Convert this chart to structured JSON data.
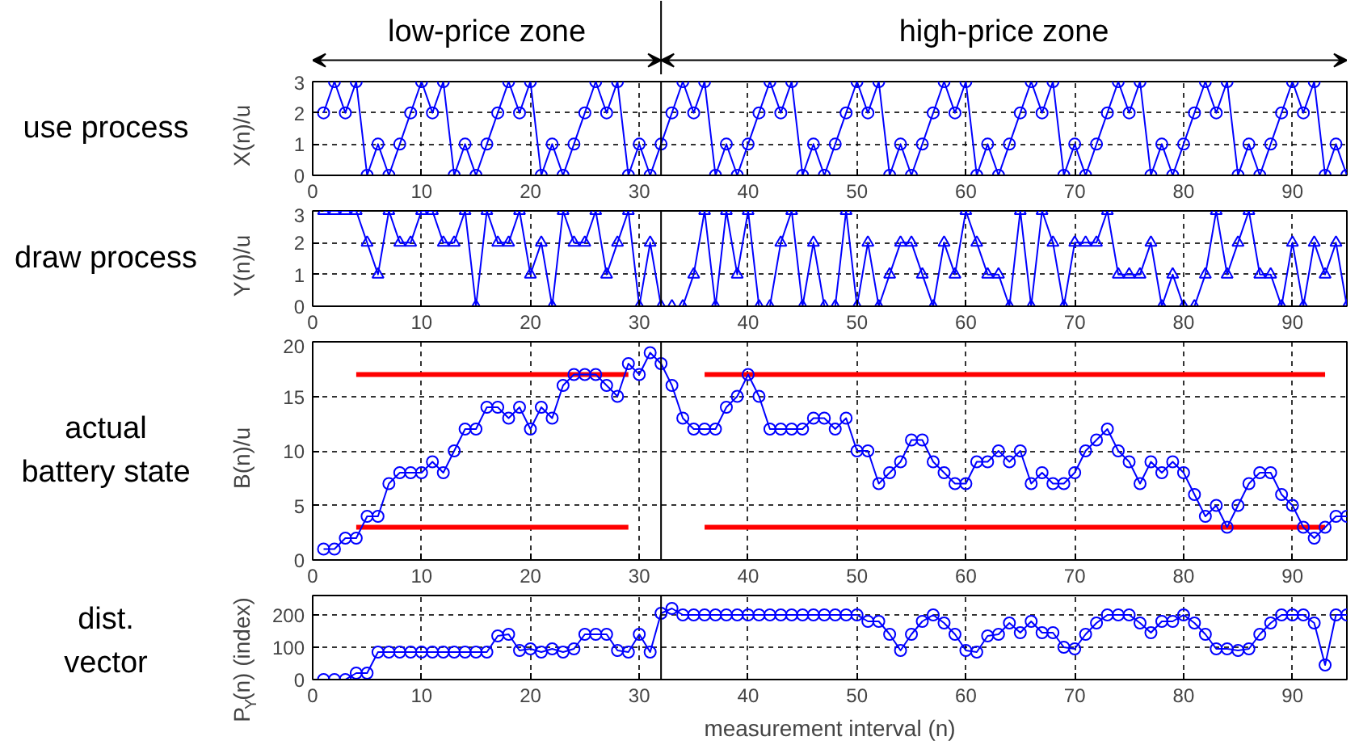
{
  "chart_data": [
    {
      "type": "line",
      "title": "use process",
      "ylabel": "X(n)/u",
      "marker": "circle",
      "grid": true,
      "xlim": [
        0,
        95
      ],
      "ylim": [
        0,
        3
      ],
      "xticks": [
        0,
        10,
        20,
        30,
        40,
        50,
        60,
        70,
        80,
        90
      ],
      "yticks": [
        0,
        1,
        2,
        3
      ],
      "annotations": [
        "low-price zone",
        "high-price zone"
      ],
      "ref_lines": [
        {
          "axis": "x",
          "value": 32,
          "color": "#000000"
        }
      ],
      "x": [
        1,
        2,
        3,
        4,
        5,
        6,
        7,
        8,
        9,
        10,
        11,
        12,
        13,
        14,
        15,
        16,
        17,
        18,
        19,
        20,
        21,
        22,
        23,
        24,
        25,
        26,
        27,
        28,
        29,
        30,
        31,
        32,
        33,
        34,
        35,
        36,
        37,
        38,
        39,
        40,
        41,
        42,
        43,
        44,
        45,
        46,
        47,
        48,
        49,
        50,
        51,
        52,
        53,
        54,
        55,
        56,
        57,
        58,
        59,
        60,
        61,
        62,
        63,
        64,
        65,
        66,
        67,
        68,
        69,
        70,
        71,
        72,
        73,
        74,
        75,
        76,
        77,
        78,
        79,
        80,
        81,
        82,
        83,
        84,
        85,
        86,
        87,
        88,
        89,
        90,
        91,
        92,
        93,
        94,
        95
      ],
      "series": [
        {
          "color": "#0000ff",
          "values": [
            2,
            3,
            2,
            3,
            0,
            1,
            0,
            1,
            2,
            3,
            2,
            3,
            0,
            1,
            0,
            1,
            2,
            3,
            2,
            3,
            0,
            1,
            0,
            1,
            2,
            3,
            2,
            3,
            0,
            1,
            0,
            1,
            2,
            3,
            2,
            3,
            0,
            1,
            0,
            1,
            2,
            3,
            2,
            3,
            0,
            1,
            0,
            1,
            2,
            3,
            2,
            3,
            0,
            1,
            0,
            1,
            2,
            3,
            2,
            3,
            0,
            1,
            0,
            1,
            2,
            3,
            2,
            3,
            0,
            1,
            0,
            1,
            2,
            3,
            2,
            3,
            0,
            1,
            0,
            1,
            2,
            3,
            2,
            3,
            0,
            1,
            0,
            1,
            2,
            3,
            2,
            3,
            0,
            1,
            0
          ]
        }
      ]
    },
    {
      "type": "line",
      "title": "draw process",
      "ylabel": "Y(n)/u",
      "marker": "triangle",
      "grid": true,
      "xlim": [
        0,
        95
      ],
      "ylim": [
        0,
        3
      ],
      "xticks": [
        0,
        10,
        20,
        30,
        40,
        50,
        60,
        70,
        80,
        90
      ],
      "yticks": [
        0,
        1,
        2,
        3
      ],
      "ref_lines": [
        {
          "axis": "x",
          "value": 32,
          "color": "#000000"
        }
      ],
      "x": [
        1,
        2,
        3,
        4,
        5,
        6,
        7,
        8,
        9,
        10,
        11,
        12,
        13,
        14,
        15,
        16,
        17,
        18,
        19,
        20,
        21,
        22,
        23,
        24,
        25,
        26,
        27,
        28,
        29,
        30,
        31,
        32,
        33,
        34,
        35,
        36,
        37,
        38,
        39,
        40,
        41,
        42,
        43,
        44,
        45,
        46,
        47,
        48,
        49,
        50,
        51,
        52,
        53,
        54,
        55,
        56,
        57,
        58,
        59,
        60,
        61,
        62,
        63,
        64,
        65,
        66,
        67,
        68,
        69,
        70,
        71,
        72,
        73,
        74,
        75,
        76,
        77,
        78,
        79,
        80,
        81,
        82,
        83,
        84,
        85,
        86,
        87,
        88,
        89,
        90,
        91,
        92,
        93,
        94,
        95
      ],
      "series": [
        {
          "color": "#0000ff",
          "values": [
            3,
            3,
            3,
            3,
            2,
            1,
            3,
            2,
            2,
            3,
            3,
            2,
            2,
            3,
            0,
            3,
            2,
            2,
            3,
            1,
            2,
            0,
            3,
            2,
            2,
            3,
            1,
            2,
            3,
            0,
            2,
            0,
            0,
            0,
            1,
            3,
            0,
            3,
            1,
            3,
            0,
            0,
            2,
            3,
            0,
            2,
            0,
            0,
            3,
            0,
            2,
            0,
            1,
            2,
            2,
            1,
            0,
            2,
            1,
            3,
            2,
            1,
            1,
            0,
            3,
            0,
            3,
            2,
            0,
            2,
            2,
            2,
            3,
            1,
            1,
            1,
            2,
            0,
            1,
            0,
            0,
            1,
            3,
            1,
            2,
            3,
            1,
            1,
            0,
            2,
            0,
            2,
            1,
            2,
            0
          ]
        }
      ]
    },
    {
      "type": "line",
      "title": "actual\nbattery state",
      "ylabel": "B(n)/u",
      "marker": "circle",
      "grid": true,
      "xlim": [
        0,
        95
      ],
      "ylim": [
        0,
        20
      ],
      "xticks": [
        0,
        10,
        20,
        30,
        40,
        50,
        60,
        70,
        80,
        90
      ],
      "yticks": [
        0,
        5,
        10,
        15,
        20
      ],
      "ref_lines": [
        {
          "axis": "x",
          "value": 32,
          "color": "#000000"
        }
      ],
      "x": [
        1,
        2,
        3,
        4,
        5,
        6,
        7,
        8,
        9,
        10,
        11,
        12,
        13,
        14,
        15,
        16,
        17,
        18,
        19,
        20,
        21,
        22,
        23,
        24,
        25,
        26,
        27,
        28,
        29,
        30,
        31,
        32,
        33,
        34,
        35,
        36,
        37,
        38,
        39,
        40,
        41,
        42,
        43,
        44,
        45,
        46,
        47,
        48,
        49,
        50,
        51,
        52,
        53,
        54,
        55,
        56,
        57,
        58,
        59,
        60,
        61,
        62,
        63,
        64,
        65,
        66,
        67,
        68,
        69,
        70,
        71,
        72,
        73,
        74,
        75,
        76,
        77,
        78,
        79,
        80,
        81,
        82,
        83,
        84,
        85,
        86,
        87,
        88,
        89,
        90,
        91,
        92,
        93,
        94,
        95
      ],
      "series": [
        {
          "color": "#ff0000",
          "marker": "none",
          "x": [
            4,
            29,
            32,
            36,
            93
          ],
          "values": [
            17,
            17,
            null,
            17,
            17
          ]
        },
        {
          "color": "#ff0000",
          "marker": "none",
          "x": [
            4,
            29,
            32,
            36,
            93
          ],
          "values": [
            3,
            3,
            null,
            3,
            3
          ]
        },
        {
          "color": "#0000ff",
          "values": [
            1,
            1,
            2,
            2,
            4,
            4,
            7,
            8,
            8,
            8,
            9,
            8,
            10,
            12,
            12,
            14,
            14,
            13,
            14,
            12,
            14,
            13,
            16,
            17,
            17,
            17,
            16,
            15,
            18,
            17,
            19,
            18,
            16,
            13,
            12,
            12,
            12,
            14,
            15,
            17,
            15,
            12,
            12,
            12,
            12,
            13,
            13,
            12,
            13,
            10,
            10,
            7,
            8,
            9,
            11,
            11,
            9,
            8,
            7,
            7,
            9,
            9,
            10,
            9,
            10,
            7,
            8,
            7,
            7,
            8,
            10,
            11,
            12,
            10,
            9,
            7,
            9,
            8,
            9,
            8,
            6,
            4,
            5,
            3,
            5,
            7,
            8,
            8,
            6,
            5,
            3,
            2,
            3,
            4,
            4
          ]
        }
      ]
    },
    {
      "type": "line",
      "title": "dist.\nvector",
      "ylabel": "P$_{Y}$(n) (index)",
      "xlabel": "measurement interval (n)",
      "marker": "circle",
      "grid": true,
      "xlim": [
        0,
        95
      ],
      "ylim": [
        0,
        260
      ],
      "xticks": [
        0,
        10,
        20,
        30,
        40,
        50,
        60,
        70,
        80,
        90
      ],
      "yticks": [
        0,
        100,
        200
      ],
      "ref_lines": [
        {
          "axis": "x",
          "value": 32,
          "color": "#000000"
        }
      ],
      "x": [
        1,
        2,
        3,
        4,
        5,
        6,
        7,
        8,
        9,
        10,
        11,
        12,
        13,
        14,
        15,
        16,
        17,
        18,
        19,
        20,
        21,
        22,
        23,
        24,
        25,
        26,
        27,
        28,
        29,
        30,
        31,
        32,
        33,
        34,
        35,
        36,
        37,
        38,
        39,
        40,
        41,
        42,
        43,
        44,
        45,
        46,
        47,
        48,
        49,
        50,
        51,
        52,
        53,
        54,
        55,
        56,
        57,
        58,
        59,
        60,
        61,
        62,
        63,
        64,
        65,
        66,
        67,
        68,
        69,
        70,
        71,
        72,
        73,
        74,
        75,
        76,
        77,
        78,
        79,
        80,
        81,
        82,
        83,
        84,
        85,
        86,
        87,
        88,
        89,
        90,
        91,
        92,
        93,
        94,
        95
      ],
      "series": [
        {
          "color": "#0000ff",
          "values": [
            0,
            0,
            0,
            20,
            20,
            85,
            85,
            85,
            85,
            85,
            85,
            85,
            85,
            85,
            85,
            85,
            135,
            140,
            90,
            95,
            85,
            95,
            85,
            95,
            140,
            140,
            140,
            90,
            85,
            140,
            85,
            205,
            220,
            200,
            200,
            200,
            200,
            200,
            200,
            200,
            200,
            200,
            200,
            200,
            200,
            200,
            200,
            200,
            200,
            200,
            180,
            180,
            140,
            90,
            140,
            180,
            200,
            175,
            140,
            90,
            85,
            135,
            140,
            175,
            145,
            180,
            145,
            145,
            100,
            95,
            140,
            175,
            200,
            200,
            200,
            175,
            145,
            180,
            180,
            200,
            175,
            140,
            95,
            95,
            90,
            95,
            140,
            175,
            200,
            200,
            200,
            175,
            45,
            200,
            200
          ]
        }
      ]
    }
  ]
}
